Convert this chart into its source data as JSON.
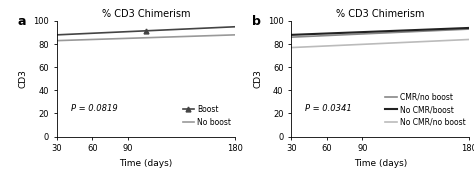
{
  "title": "% CD3 Chimerism",
  "xlabel": "Time (days)",
  "ylabel": "CD3",
  "xlim": [
    30,
    180
  ],
  "ylim": [
    0,
    100
  ],
  "xticks": [
    30,
    60,
    90,
    180
  ],
  "yticks": [
    0,
    20,
    40,
    60,
    80,
    100
  ],
  "panel_a": {
    "label": "a",
    "p_value": "P = 0.0819",
    "lines": [
      {
        "label": "Boost",
        "x": [
          30,
          180
        ],
        "y": [
          88,
          95
        ],
        "color": "#444444",
        "linewidth": 1.2,
        "marker": "^",
        "markersize": 3.5
      },
      {
        "label": "No boost",
        "x": [
          30,
          180
        ],
        "y": [
          83,
          88
        ],
        "color": "#999999",
        "linewidth": 1.2,
        "marker": null
      }
    ]
  },
  "panel_b": {
    "label": "b",
    "p_value": "P = 0.0341",
    "lines": [
      {
        "label": "CMR/no boost",
        "x": [
          30,
          180
        ],
        "y": [
          86,
          93
        ],
        "color": "#888888",
        "linewidth": 1.2,
        "marker": null
      },
      {
        "label": "No CMR/boost",
        "x": [
          30,
          180
        ],
        "y": [
          88,
          94
        ],
        "color": "#222222",
        "linewidth": 1.5,
        "marker": null
      },
      {
        "label": "No CMR/no boost",
        "x": [
          30,
          180
        ],
        "y": [
          77,
          84
        ],
        "color": "#bbbbbb",
        "linewidth": 1.2,
        "marker": null
      }
    ]
  }
}
